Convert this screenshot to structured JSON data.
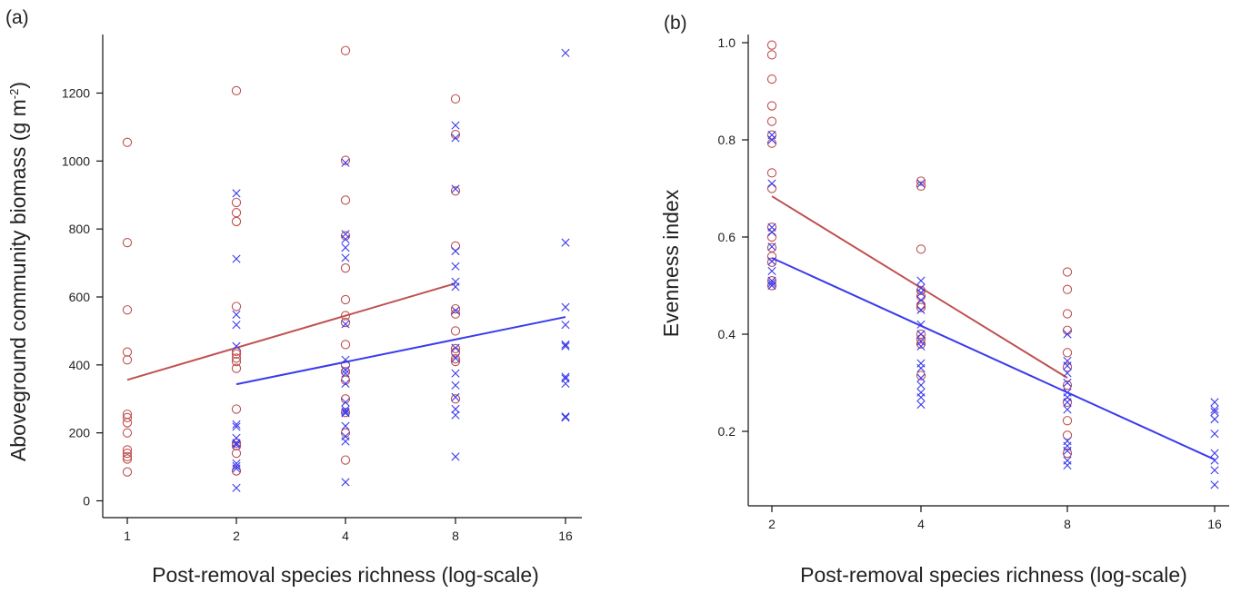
{
  "colors": {
    "red_series": "#c05050",
    "blue_series": "#3a3aee",
    "axis": "#111111"
  },
  "chart_data": [
    {
      "type": "scatter",
      "panel_label": "(a)",
      "xlabel": "Post-removal species richness (log-scale)",
      "ylabel": "Aboveground community biomass (g m",
      "ylabel_sup": "-2",
      "ylabel_close": ")",
      "x_scale": "log2",
      "xlim": [
        1,
        16
      ],
      "ylim": [
        0,
        1350
      ],
      "x_ticks": [
        1,
        2,
        4,
        8,
        16
      ],
      "y_ticks": [
        0,
        200,
        400,
        600,
        800,
        1000,
        1200
      ],
      "grid": false,
      "series": [
        {
          "marker": "circle",
          "color": "#c05050",
          "points": [
            [
              1,
              1055
            ],
            [
              1,
              760
            ],
            [
              1,
              562
            ],
            [
              1,
              438
            ],
            [
              1,
              415
            ],
            [
              1,
              255
            ],
            [
              1,
              245
            ],
            [
              1,
              230
            ],
            [
              1,
              200
            ],
            [
              1,
              150
            ],
            [
              1,
              140
            ],
            [
              1,
              130
            ],
            [
              1,
              123
            ],
            [
              1,
              85
            ],
            [
              2,
              1207
            ],
            [
              2,
              878
            ],
            [
              2,
              848
            ],
            [
              2,
              822
            ],
            [
              2,
              572
            ],
            [
              2,
              440
            ],
            [
              2,
              432
            ],
            [
              2,
              420
            ],
            [
              2,
              410
            ],
            [
              2,
              390
            ],
            [
              2,
              270
            ],
            [
              2,
              170
            ],
            [
              2,
              162
            ],
            [
              2,
              140
            ],
            [
              2,
              88
            ],
            [
              4,
              1325
            ],
            [
              4,
              1002
            ],
            [
              4,
              885
            ],
            [
              4,
              780
            ],
            [
              4,
              685
            ],
            [
              4,
              592
            ],
            [
              4,
              545
            ],
            [
              4,
              525
            ],
            [
              4,
              460
            ],
            [
              4,
              400
            ],
            [
              4,
              380
            ],
            [
              4,
              355
            ],
            [
              4,
              300
            ],
            [
              4,
              260
            ],
            [
              4,
              200
            ],
            [
              4,
              120
            ],
            [
              8,
              1183
            ],
            [
              8,
              1078
            ],
            [
              8,
              912
            ],
            [
              8,
              750
            ],
            [
              8,
              565
            ],
            [
              8,
              550
            ],
            [
              8,
              500
            ],
            [
              8,
              448
            ],
            [
              8,
              438
            ],
            [
              8,
              418
            ],
            [
              8,
              410
            ],
            [
              8,
              300
            ]
          ],
          "fit": {
            "x": [
              1,
              8
            ],
            "y": [
              356,
              640
            ]
          }
        },
        {
          "marker": "cross",
          "color": "#3a3aee",
          "points": [
            [
              2,
              905
            ],
            [
              2,
              712
            ],
            [
              2,
              548
            ],
            [
              2,
              518
            ],
            [
              2,
              455
            ],
            [
              2,
              225
            ],
            [
              2,
              218
            ],
            [
              2,
              185
            ],
            [
              2,
              170
            ],
            [
              2,
              165
            ],
            [
              2,
              110
            ],
            [
              2,
              102
            ],
            [
              2,
              95
            ],
            [
              2,
              38
            ],
            [
              4,
              995
            ],
            [
              4,
              785
            ],
            [
              4,
              770
            ],
            [
              4,
              745
            ],
            [
              4,
              715
            ],
            [
              4,
              520
            ],
            [
              4,
              415
            ],
            [
              4,
              385
            ],
            [
              4,
              375
            ],
            [
              4,
              345
            ],
            [
              4,
              290
            ],
            [
              4,
              268
            ],
            [
              4,
              262
            ],
            [
              4,
              258
            ],
            [
              4,
              220
            ],
            [
              4,
              190
            ],
            [
              4,
              175
            ],
            [
              4,
              55
            ],
            [
              8,
              1105
            ],
            [
              8,
              1068
            ],
            [
              8,
              918
            ],
            [
              8,
              735
            ],
            [
              8,
              690
            ],
            [
              8,
              645
            ],
            [
              8,
              630
            ],
            [
              8,
              560
            ],
            [
              8,
              450
            ],
            [
              8,
              420
            ],
            [
              8,
              375
            ],
            [
              8,
              340
            ],
            [
              8,
              305
            ],
            [
              8,
              270
            ],
            [
              8,
              252
            ],
            [
              8,
              130
            ],
            [
              16,
              1318
            ],
            [
              16,
              760
            ],
            [
              16,
              570
            ],
            [
              16,
              518
            ],
            [
              16,
              460
            ],
            [
              16,
              455
            ],
            [
              16,
              365
            ],
            [
              16,
              360
            ],
            [
              16,
              345
            ],
            [
              16,
              248
            ],
            [
              16,
              245
            ]
          ],
          "fit": {
            "x": [
              2,
              16
            ],
            "y": [
              343,
              541
            ]
          }
        }
      ]
    },
    {
      "type": "scatter",
      "panel_label": "(b)",
      "xlabel": "Post-removal species richness (log-scale)",
      "ylabel": "Evenness index",
      "x_scale": "log2",
      "xlim": [
        2,
        16
      ],
      "ylim": [
        0.07,
        1.02
      ],
      "x_ticks": [
        2,
        4,
        8,
        16
      ],
      "y_ticks": [
        0.2,
        0.4,
        0.6,
        0.8,
        1.0
      ],
      "y_tick_labels": [
        "0.2",
        "0.4",
        "0.6",
        "0.8",
        "1.0"
      ],
      "grid": false,
      "series": [
        {
          "marker": "circle",
          "color": "#c05050",
          "points": [
            [
              2,
              0.995
            ],
            [
              2,
              0.975
            ],
            [
              2,
              0.925
            ],
            [
              2,
              0.87
            ],
            [
              2,
              0.838
            ],
            [
              2,
              0.81
            ],
            [
              2,
              0.793
            ],
            [
              2,
              0.732
            ],
            [
              2,
              0.7
            ],
            [
              2,
              0.62
            ],
            [
              2,
              0.6
            ],
            [
              2,
              0.578
            ],
            [
              2,
              0.56
            ],
            [
              2,
              0.548
            ],
            [
              2,
              0.51
            ],
            [
              2,
              0.5
            ],
            [
              4,
              0.715
            ],
            [
              4,
              0.705
            ],
            [
              4,
              0.575
            ],
            [
              4,
              0.49
            ],
            [
              4,
              0.478
            ],
            [
              4,
              0.46
            ],
            [
              4,
              0.455
            ],
            [
              4,
              0.4
            ],
            [
              4,
              0.39
            ],
            [
              4,
              0.38
            ],
            [
              4,
              0.315
            ],
            [
              8,
              0.528
            ],
            [
              8,
              0.492
            ],
            [
              8,
              0.442
            ],
            [
              8,
              0.408
            ],
            [
              8,
              0.362
            ],
            [
              8,
              0.332
            ],
            [
              8,
              0.295
            ],
            [
              8,
              0.26
            ],
            [
              8,
              0.222
            ],
            [
              8,
              0.192
            ],
            [
              8,
              0.155
            ]
          ],
          "fit": {
            "x": [
              2,
              8
            ],
            "y": [
              0.684,
              0.31
            ]
          }
        },
        {
          "marker": "cross",
          "color": "#3a3aee",
          "points": [
            [
              2,
              0.81
            ],
            [
              2,
              0.8
            ],
            [
              2,
              0.71
            ],
            [
              2,
              0.62
            ],
            [
              2,
              0.61
            ],
            [
              2,
              0.58
            ],
            [
              2,
              0.55
            ],
            [
              2,
              0.53
            ],
            [
              2,
              0.51
            ],
            [
              2,
              0.505
            ],
            [
              2,
              0.5
            ],
            [
              4,
              0.71
            ],
            [
              4,
              0.51
            ],
            [
              4,
              0.495
            ],
            [
              4,
              0.485
            ],
            [
              4,
              0.47
            ],
            [
              4,
              0.45
            ],
            [
              4,
              0.42
            ],
            [
              4,
              0.4
            ],
            [
              4,
              0.385
            ],
            [
              4,
              0.375
            ],
            [
              4,
              0.34
            ],
            [
              4,
              0.33
            ],
            [
              4,
              0.31
            ],
            [
              4,
              0.295
            ],
            [
              4,
              0.28
            ],
            [
              4,
              0.27
            ],
            [
              4,
              0.255
            ],
            [
              8,
              0.4
            ],
            [
              8,
              0.345
            ],
            [
              8,
              0.335
            ],
            [
              8,
              0.32
            ],
            [
              8,
              0.3
            ],
            [
              8,
              0.28
            ],
            [
              8,
              0.27
            ],
            [
              8,
              0.26
            ],
            [
              8,
              0.245
            ],
            [
              8,
              0.18
            ],
            [
              8,
              0.17
            ],
            [
              8,
              0.16
            ],
            [
              8,
              0.14
            ],
            [
              8,
              0.13
            ],
            [
              16,
              0.26
            ],
            [
              16,
              0.245
            ],
            [
              16,
              0.24
            ],
            [
              16,
              0.225
            ],
            [
              16,
              0.195
            ],
            [
              16,
              0.155
            ],
            [
              16,
              0.14
            ],
            [
              16,
              0.12
            ],
            [
              16,
              0.09
            ]
          ],
          "fit": {
            "x": [
              2,
              16
            ],
            "y": [
              0.557,
              0.142
            ]
          }
        }
      ]
    }
  ]
}
